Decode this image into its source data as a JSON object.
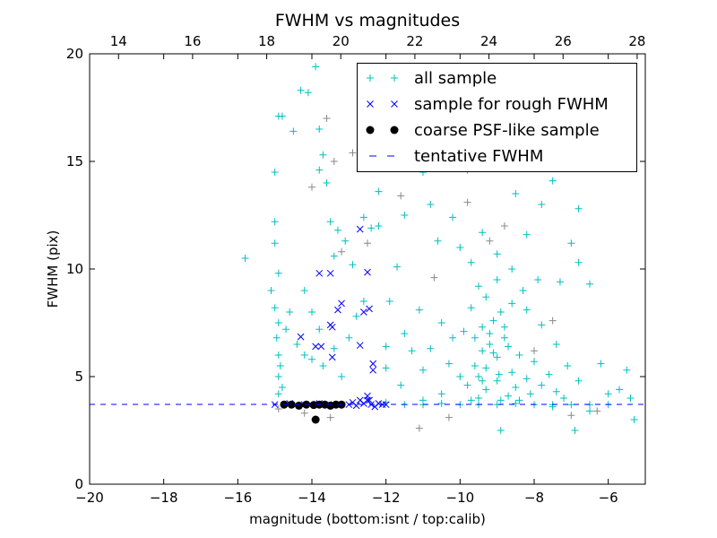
{
  "chart_data": {
    "type": "scatter",
    "title": "FWHM vs magnitudes",
    "xlabel": "magnitude (bottom:isnt / top:calib)",
    "ylabel": "FWHM (pix)",
    "xlim": [
      -20,
      -5
    ],
    "ylim": [
      0,
      20
    ],
    "xlim_top": [
      13.22,
      28.22
    ],
    "xticks": [
      -20,
      -18,
      -16,
      -14,
      -12,
      -10,
      -8,
      -6
    ],
    "xtick_labels": [
      "−20",
      "−18",
      "−16",
      "−14",
      "−12",
      "−10",
      "−8",
      "−6"
    ],
    "xticks_top": [
      14,
      16,
      18,
      20,
      22,
      24,
      26,
      28
    ],
    "xtick_labels_top": [
      "14",
      "16",
      "18",
      "20",
      "22",
      "24",
      "26",
      "28"
    ],
    "yticks": [
      0,
      5,
      10,
      15,
      20
    ],
    "ytick_labels": [
      "0",
      "5",
      "10",
      "15",
      "20"
    ],
    "grid": false,
    "legend_placement": "top-right",
    "tentative_fwhm": 3.71,
    "series": [
      {
        "name": "all sample",
        "marker": "plus",
        "color": "#00bfbf",
        "points": [
          [
            -15.8,
            10.5
          ],
          [
            -15.1,
            9.0
          ],
          [
            -15.0,
            11.2
          ],
          [
            -15.0,
            12.2
          ],
          [
            -14.9,
            17.1
          ],
          [
            -14.8,
            17.1
          ],
          [
            -15.0,
            14.5
          ],
          [
            -14.9,
            9.8
          ],
          [
            -15.0,
            8.2
          ],
          [
            -14.9,
            7.5
          ],
          [
            -14.95,
            6.8
          ],
          [
            -14.9,
            6.0
          ],
          [
            -14.85,
            5.5
          ],
          [
            -14.9,
            5.0
          ],
          [
            -14.8,
            4.5
          ],
          [
            -14.9,
            4.2
          ],
          [
            -14.7,
            7.2
          ],
          [
            -14.6,
            8.0
          ],
          [
            -14.5,
            16.4
          ],
          [
            -14.3,
            18.3
          ],
          [
            -14.1,
            18.2
          ],
          [
            -13.9,
            19.4
          ],
          [
            -13.8,
            16.5
          ],
          [
            -13.7,
            15.3
          ],
          [
            -13.8,
            14.6
          ],
          [
            -13.6,
            14.0
          ],
          [
            -13.5,
            12.2
          ],
          [
            -13.3,
            11.8
          ],
          [
            -13.1,
            11.3
          ],
          [
            -13.4,
            10.6
          ],
          [
            -14.2,
            9.0
          ],
          [
            -14.0,
            8.0
          ],
          [
            -13.8,
            7.2
          ],
          [
            -14.4,
            6.5
          ],
          [
            -14.2,
            6.0
          ],
          [
            -14.0,
            5.8
          ],
          [
            -13.7,
            5.5
          ],
          [
            -13.4,
            6.3
          ],
          [
            -13.2,
            5.0
          ],
          [
            -13.0,
            6.8
          ],
          [
            -12.8,
            7.8
          ],
          [
            -12.6,
            8.5
          ],
          [
            -12.9,
            10.2
          ],
          [
            -12.6,
            12.4
          ],
          [
            -12.4,
            11.9
          ],
          [
            -12.2,
            12.0
          ],
          [
            -12.2,
            13.6
          ],
          [
            -12.5,
            19.2
          ],
          [
            -11.8,
            16.4
          ],
          [
            -11.6,
            17.7
          ],
          [
            -11.2,
            16.0
          ],
          [
            -11.0,
            14.5
          ],
          [
            -10.8,
            13.0
          ],
          [
            -11.5,
            12.5
          ],
          [
            -11.7,
            10.1
          ],
          [
            -11.9,
            8.5
          ],
          [
            -11.5,
            7.0
          ],
          [
            -11.1,
            8.1
          ],
          [
            -11.3,
            6.2
          ],
          [
            -12.0,
            6.4
          ],
          [
            -12.0,
            5.4
          ],
          [
            -11.6,
            4.6
          ],
          [
            -11.0,
            5.3
          ],
          [
            -10.5,
            18.9
          ],
          [
            -10.4,
            17.8
          ],
          [
            -10.0,
            16.0
          ],
          [
            -9.6,
            15.5
          ],
          [
            -9.3,
            17.9
          ],
          [
            -9.1,
            18.6
          ],
          [
            -9.0,
            16.8
          ],
          [
            -8.7,
            15.8
          ],
          [
            -8.2,
            14.8
          ],
          [
            -7.5,
            14.1
          ],
          [
            -7.0,
            15.5
          ],
          [
            -6.8,
            12.8
          ],
          [
            -7.8,
            13.0
          ],
          [
            -8.5,
            13.5
          ],
          [
            -9.8,
            14.6
          ],
          [
            -10.2,
            12.4
          ],
          [
            -10.6,
            11.3
          ],
          [
            -10.0,
            11.0
          ],
          [
            -9.7,
            10.3
          ],
          [
            -9.4,
            11.7
          ],
          [
            -9.0,
            10.7
          ],
          [
            -8.6,
            10.0
          ],
          [
            -8.2,
            11.6
          ],
          [
            -7.9,
            9.5
          ],
          [
            -7.3,
            9.4
          ],
          [
            -7.0,
            11.2
          ],
          [
            -6.8,
            10.3
          ],
          [
            -6.5,
            9.3
          ],
          [
            -6.2,
            5.6
          ],
          [
            -5.5,
            5.3
          ],
          [
            -5.3,
            3.0
          ],
          [
            -5.4,
            4.0
          ],
          [
            -5.7,
            4.4
          ],
          [
            -6.0,
            4.2
          ],
          [
            -6.5,
            3.4
          ],
          [
            -6.8,
            4.8
          ],
          [
            -7.1,
            5.5
          ],
          [
            -7.4,
            6.5
          ],
          [
            -7.8,
            7.4
          ],
          [
            -8.2,
            8.1
          ],
          [
            -8.6,
            8.4
          ],
          [
            -8.9,
            8.0
          ],
          [
            -9.1,
            7.6
          ],
          [
            -9.3,
            8.7
          ],
          [
            -9.5,
            9.2
          ],
          [
            -9.7,
            8.2
          ],
          [
            -9.9,
            7.1
          ],
          [
            -10.2,
            6.8
          ],
          [
            -10.5,
            7.5
          ],
          [
            -10.8,
            6.3
          ],
          [
            -10.3,
            5.6
          ],
          [
            -10.0,
            5.0
          ],
          [
            -9.8,
            4.6
          ],
          [
            -9.6,
            5.5
          ],
          [
            -9.4,
            6.2
          ],
          [
            -9.2,
            7.0
          ],
          [
            -9.0,
            5.9
          ],
          [
            -8.8,
            6.8
          ],
          [
            -8.6,
            5.2
          ],
          [
            -8.4,
            6.0
          ],
          [
            -8.2,
            4.9
          ],
          [
            -8.0,
            5.7
          ],
          [
            -7.8,
            4.6
          ],
          [
            -7.6,
            5.1
          ],
          [
            -7.4,
            4.3
          ],
          [
            -7.2,
            4.0
          ],
          [
            -9.3,
            4.4
          ],
          [
            -9.0,
            4.8
          ],
          [
            -8.7,
            4.1
          ],
          [
            -8.5,
            4.5
          ],
          [
            -8.9,
            3.9
          ],
          [
            -9.5,
            4.0
          ],
          [
            -10.5,
            4.2
          ],
          [
            -11.0,
            3.9
          ],
          [
            -12.0,
            3.8
          ],
          [
            -11.5,
            3.7
          ],
          [
            -11.0,
            3.7
          ],
          [
            -10.5,
            3.75
          ],
          [
            -10.0,
            3.7
          ],
          [
            -9.5,
            3.7
          ],
          [
            -9.0,
            3.7
          ],
          [
            -8.5,
            3.75
          ],
          [
            -8.0,
            3.7
          ],
          [
            -7.5,
            3.7
          ],
          [
            -7.0,
            3.7
          ],
          [
            -6.5,
            3.7
          ],
          [
            -6.0,
            3.7
          ],
          [
            -9.2,
            6.5
          ],
          [
            -9.4,
            7.3
          ],
          [
            -8.8,
            7.3
          ],
          [
            -9.6,
            6.8
          ],
          [
            -9.0,
            9.5
          ],
          [
            -8.3,
            9.0
          ],
          [
            -9.5,
            5.0
          ],
          [
            -8.1,
            4.2
          ],
          [
            -7.5,
            3.6
          ],
          [
            -6.9,
            2.5
          ],
          [
            -8.9,
            2.5
          ],
          [
            -9.3,
            5.4
          ],
          [
            -9.1,
            6.1
          ],
          [
            -8.7,
            6.4
          ],
          [
            -9.4,
            4.8
          ],
          [
            -8.95,
            5.1
          ],
          [
            -8.4,
            3.9
          ],
          [
            -9.7,
            3.9
          ]
        ]
      },
      {
        "name": "",
        "marker": "plus",
        "color": "#888888",
        "points": [
          [
            -14.9,
            3.5
          ],
          [
            -14.2,
            3.3
          ],
          [
            -13.5,
            3.1
          ],
          [
            -14.0,
            13.8
          ],
          [
            -13.4,
            15.0
          ],
          [
            -13.2,
            10.8
          ],
          [
            -12.5,
            11.2
          ],
          [
            -12.9,
            15.4
          ],
          [
            -11.1,
            2.6
          ],
          [
            -10.3,
            3.1
          ],
          [
            -9.2,
            11.3
          ],
          [
            -8.8,
            12.0
          ],
          [
            -8.0,
            6.2
          ],
          [
            -7.5,
            7.6
          ],
          [
            -9.8,
            13.1
          ],
          [
            -7.0,
            3.2
          ],
          [
            -6.3,
            3.4
          ],
          [
            -10.7,
            9.6
          ],
          [
            -11.6,
            13.4
          ],
          [
            -13.6,
            17.0
          ]
        ]
      },
      {
        "name": "sample for rough FWHM",
        "marker": "x",
        "color": "#0000ff",
        "points": [
          [
            -12.7,
            11.85
          ],
          [
            -13.8,
            9.8
          ],
          [
            -13.5,
            9.8
          ],
          [
            -12.5,
            9.85
          ],
          [
            -13.2,
            8.4
          ],
          [
            -13.3,
            8.1
          ],
          [
            -12.6,
            8.0
          ],
          [
            -12.45,
            8.15
          ],
          [
            -13.5,
            7.4
          ],
          [
            -13.45,
            7.3
          ],
          [
            -14.3,
            6.85
          ],
          [
            -13.9,
            6.4
          ],
          [
            -13.75,
            6.4
          ],
          [
            -12.7,
            6.45
          ],
          [
            -13.45,
            5.9
          ],
          [
            -12.35,
            5.6
          ],
          [
            -12.35,
            5.3
          ],
          [
            -12.5,
            4.1
          ],
          [
            -12.45,
            3.9
          ],
          [
            -15.0,
            3.7
          ],
          [
            -14.6,
            3.75
          ],
          [
            -14.2,
            3.7
          ],
          [
            -13.8,
            3.75
          ],
          [
            -13.4,
            3.7
          ],
          [
            -13.0,
            3.7
          ],
          [
            -12.9,
            3.8
          ],
          [
            -12.8,
            3.65
          ],
          [
            -12.6,
            3.75
          ],
          [
            -12.5,
            3.9
          ],
          [
            -12.4,
            3.7
          ],
          [
            -12.3,
            3.6
          ],
          [
            -12.2,
            3.75
          ],
          [
            -12.1,
            3.7
          ],
          [
            -12.7,
            3.9
          ],
          [
            -12.0,
            3.7
          ]
        ]
      },
      {
        "name": "coarse PSF-like sample",
        "marker": "dot",
        "color": "#000000",
        "points": [
          [
            -14.75,
            3.7
          ],
          [
            -14.55,
            3.7
          ],
          [
            -14.35,
            3.65
          ],
          [
            -14.15,
            3.7
          ],
          [
            -13.95,
            3.68
          ],
          [
            -13.8,
            3.7
          ],
          [
            -13.65,
            3.7
          ],
          [
            -13.5,
            3.65
          ],
          [
            -13.35,
            3.7
          ],
          [
            -13.2,
            3.7
          ],
          [
            -13.9,
            3.0
          ]
        ]
      },
      {
        "name": "tentative FWHM",
        "marker": "dashed-line",
        "color": "#0000ff",
        "points": []
      }
    ]
  }
}
